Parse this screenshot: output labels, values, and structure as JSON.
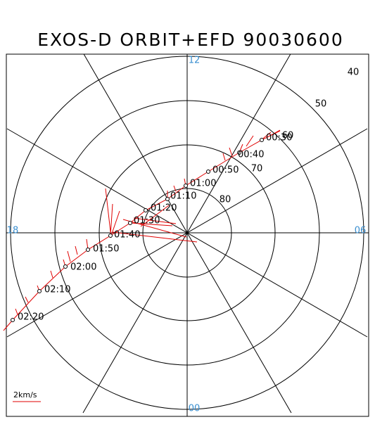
{
  "title": "EXOS-D ORBIT+EFD 90030600",
  "local_time_labels": [
    "12",
    "18",
    "06",
    "00"
  ],
  "latitude_labels": [
    "40",
    "50",
    "60",
    "70",
    "80"
  ],
  "time_labels": [
    "00:30",
    "00:40",
    "00:50",
    "01:00",
    "01:10",
    "01:20",
    "01:30",
    "01:40",
    "01:50",
    "02:00",
    "02:10",
    "02:20"
  ],
  "scale_label": "2km/s"
}
